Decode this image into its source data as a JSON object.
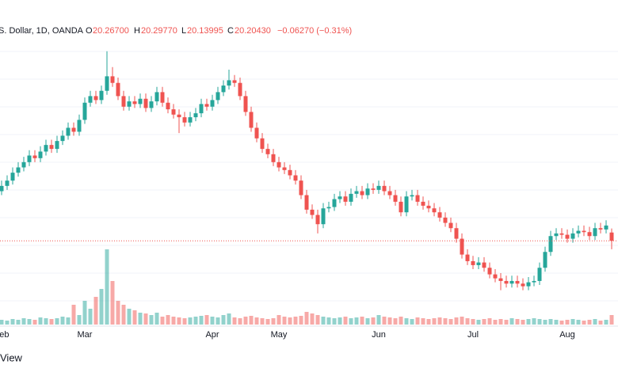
{
  "chart_data": {
    "type": "candlestick",
    "header": {
      "symbol": "S. Dollar, 1D, OANDA",
      "o_label": "O",
      "open": "20.26700",
      "h_label": "H",
      "high": "20.29770",
      "l_label": "L",
      "low": "20.13995",
      "c_label": "C",
      "close": "20.20430",
      "change": "−0.06270 (−0.31%)"
    },
    "footer": "View",
    "categories": [
      "Feb",
      null,
      null,
      null,
      null,
      null,
      null,
      null,
      null,
      null,
      null,
      null,
      null,
      null,
      null,
      "Mar",
      null,
      null,
      null,
      null,
      null,
      null,
      null,
      null,
      null,
      null,
      null,
      null,
      null,
      null,
      null,
      null,
      null,
      null,
      null,
      null,
      null,
      null,
      "Apr",
      null,
      null,
      null,
      null,
      null,
      null,
      null,
      null,
      null,
      null,
      null,
      "May",
      null,
      null,
      null,
      null,
      null,
      null,
      null,
      null,
      null,
      null,
      null,
      null,
      null,
      null,
      null,
      null,
      null,
      "Jun",
      null,
      null,
      null,
      null,
      null,
      null,
      null,
      null,
      null,
      null,
      null,
      null,
      null,
      null,
      null,
      null,
      "Jul",
      null,
      null,
      null,
      null,
      null,
      null,
      null,
      null,
      null,
      null,
      null,
      null,
      null,
      null,
      null,
      null,
      "Aug",
      null,
      null,
      null,
      null,
      null,
      null,
      null,
      null
    ],
    "open": [
      20.58,
      20.62,
      20.66,
      20.72,
      20.76,
      20.8,
      20.85,
      20.83,
      20.88,
      20.93,
      20.9,
      20.96,
      21.0,
      21.06,
      21.03,
      21.12,
      21.25,
      21.3,
      21.27,
      21.34,
      21.45,
      21.4,
      21.3,
      21.22,
      21.26,
      21.24,
      21.28,
      21.21,
      21.26,
      21.33,
      21.25,
      21.2,
      21.16,
      21.14,
      21.1,
      21.14,
      21.17,
      21.24,
      21.22,
      21.27,
      21.33,
      21.38,
      21.42,
      21.4,
      21.3,
      21.18,
      21.06,
      20.98,
      20.9,
      20.86,
      20.8,
      20.76,
      20.74,
      20.7,
      20.66,
      20.55,
      20.44,
      20.4,
      20.33,
      20.45,
      20.46,
      20.52,
      20.54,
      20.5,
      20.56,
      20.58,
      20.55,
      20.6,
      20.59,
      20.62,
      20.58,
      20.55,
      20.5,
      20.42,
      20.54,
      20.55,
      20.5,
      20.47,
      20.45,
      20.42,
      20.38,
      20.34,
      20.3,
      20.22,
      20.1,
      20.05,
      20.02,
      20.04,
      20.0,
      19.95,
      19.92,
      19.9,
      19.88,
      19.9,
      19.88,
      19.86,
      19.89,
      19.9,
      20.0,
      20.12,
      20.24,
      20.26,
      20.25,
      20.22,
      20.26,
      20.28,
      20.27,
      20.24,
      20.3,
      20.29,
      20.267
    ],
    "high": [
      20.66,
      20.7,
      20.76,
      20.8,
      20.84,
      20.89,
      20.89,
      20.92,
      20.97,
      20.97,
      21.0,
      21.04,
      21.1,
      21.1,
      21.16,
      21.29,
      21.34,
      21.34,
      21.38,
      21.64,
      21.52,
      21.44,
      21.34,
      21.3,
      21.3,
      21.32,
      21.32,
      21.3,
      21.37,
      21.37,
      21.29,
      21.24,
      21.2,
      21.18,
      21.18,
      21.21,
      21.28,
      21.28,
      21.31,
      21.37,
      21.42,
      21.5,
      21.46,
      21.44,
      21.34,
      21.22,
      21.1,
      21.02,
      20.94,
      20.9,
      20.84,
      20.8,
      20.78,
      20.74,
      20.7,
      20.59,
      20.48,
      20.44,
      20.49,
      20.5,
      20.56,
      20.58,
      20.58,
      20.6,
      20.62,
      20.62,
      20.64,
      20.64,
      20.66,
      20.66,
      20.62,
      20.59,
      20.54,
      20.58,
      20.59,
      20.59,
      20.54,
      20.51,
      20.49,
      20.46,
      20.42,
      20.38,
      20.34,
      20.26,
      20.14,
      20.09,
      20.08,
      20.08,
      20.04,
      19.99,
      19.96,
      19.94,
      19.94,
      19.94,
      19.92,
      19.93,
      19.94,
      20.04,
      20.16,
      20.28,
      20.3,
      20.3,
      20.29,
      20.3,
      20.32,
      20.32,
      20.31,
      20.34,
      20.34,
      20.36,
      20.2977
    ],
    "low": [
      20.55,
      20.59,
      20.63,
      20.69,
      20.73,
      20.77,
      20.8,
      20.8,
      20.85,
      20.87,
      20.87,
      20.93,
      20.97,
      21.0,
      21.0,
      21.09,
      21.22,
      21.24,
      21.24,
      21.31,
      21.37,
      21.27,
      21.19,
      21.19,
      21.21,
      21.21,
      21.18,
      21.18,
      21.23,
      21.22,
      21.17,
      21.13,
      21.02,
      21.07,
      21.07,
      21.11,
      21.14,
      21.19,
      21.19,
      21.24,
      21.3,
      21.35,
      21.37,
      21.27,
      21.15,
      21.03,
      20.95,
      20.87,
      20.83,
      20.77,
      20.73,
      20.71,
      20.67,
      20.63,
      20.52,
      20.41,
      20.37,
      20.26,
      20.3,
      20.42,
      20.43,
      20.49,
      20.47,
      20.47,
      20.53,
      20.52,
      20.52,
      20.56,
      20.56,
      20.55,
      20.52,
      20.47,
      20.39,
      20.39,
      20.51,
      20.47,
      20.44,
      20.42,
      20.39,
      20.35,
      20.31,
      20.27,
      20.19,
      20.07,
      20.02,
      19.99,
      19.99,
      19.97,
      19.92,
      19.89,
      19.83,
      19.85,
      19.85,
      19.85,
      19.83,
      19.83,
      19.86,
      19.87,
      19.97,
      20.09,
      20.21,
      20.22,
      20.19,
      20.19,
      20.23,
      20.24,
      20.21,
      20.21,
      20.26,
      20.26,
      20.13995
    ],
    "close": [
      20.62,
      20.66,
      20.72,
      20.76,
      20.8,
      20.85,
      20.83,
      20.88,
      20.93,
      20.9,
      20.96,
      21.0,
      21.06,
      21.03,
      21.12,
      21.25,
      21.3,
      21.27,
      21.34,
      21.45,
      21.4,
      21.3,
      21.22,
      21.26,
      21.24,
      21.28,
      21.21,
      21.26,
      21.33,
      21.25,
      21.2,
      21.16,
      21.14,
      21.1,
      21.14,
      21.17,
      21.24,
      21.22,
      21.27,
      21.33,
      21.38,
      21.42,
      21.4,
      21.3,
      21.18,
      21.06,
      20.98,
      20.9,
      20.86,
      20.8,
      20.76,
      20.74,
      20.7,
      20.66,
      20.55,
      20.44,
      20.4,
      20.33,
      20.45,
      20.46,
      20.52,
      20.54,
      20.5,
      20.56,
      20.58,
      20.55,
      20.6,
      20.59,
      20.62,
      20.58,
      20.55,
      20.5,
      20.42,
      20.54,
      20.55,
      20.5,
      20.47,
      20.45,
      20.42,
      20.38,
      20.34,
      20.3,
      20.22,
      20.1,
      20.05,
      20.02,
      20.04,
      20.0,
      19.95,
      19.92,
      19.9,
      19.88,
      19.9,
      19.88,
      19.86,
      19.89,
      19.9,
      20.0,
      20.12,
      20.24,
      20.26,
      20.25,
      20.22,
      20.26,
      20.28,
      20.27,
      20.24,
      20.3,
      20.29,
      20.32,
      20.2043
    ],
    "volume": [
      6,
      5,
      7,
      6,
      8,
      7,
      6,
      9,
      8,
      7,
      8,
      10,
      9,
      25,
      12,
      30,
      20,
      35,
      45,
      95,
      55,
      30,
      25,
      20,
      18,
      15,
      14,
      12,
      15,
      10,
      12,
      10,
      9,
      8,
      9,
      10,
      11,
      12,
      10,
      9,
      12,
      14,
      9,
      8,
      10,
      11,
      9,
      8,
      7,
      8,
      12,
      10,
      9,
      10,
      11,
      16,
      14,
      12,
      10,
      9,
      8,
      9,
      10,
      8,
      9,
      10,
      8,
      9,
      12,
      10,
      9,
      8,
      10,
      8,
      7,
      9,
      8,
      7,
      8,
      9,
      8,
      7,
      9,
      10,
      8,
      7,
      6,
      7,
      8,
      6,
      7,
      6,
      8,
      7,
      6,
      7,
      8,
      7,
      6,
      7,
      6,
      5,
      6,
      7,
      6,
      5,
      6,
      7,
      5,
      6,
      12
    ],
    "ylim": [
      19.6,
      21.8
    ],
    "vlim": [
      0,
      100
    ],
    "up_color": "#26a69a",
    "down_color": "#ef5350"
  }
}
